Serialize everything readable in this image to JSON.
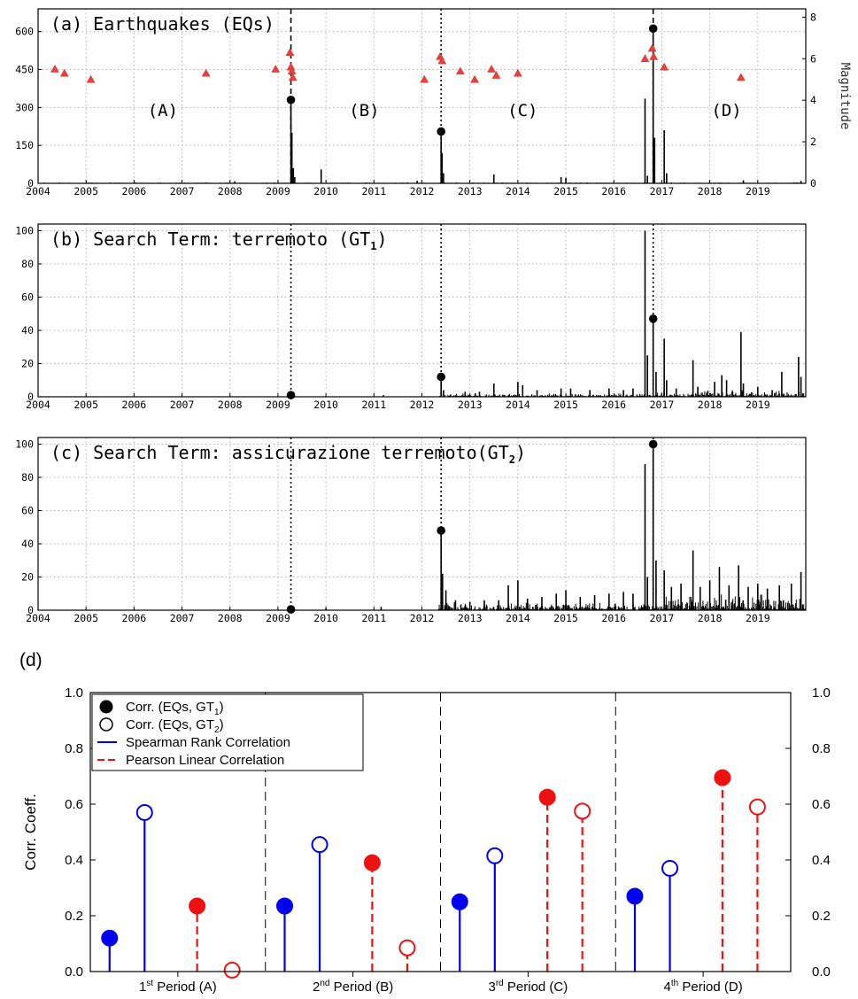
{
  "chart_data": [
    {
      "panel": "a",
      "type": "line",
      "title": "(a) Earthquakes (EQs)",
      "y2label": "Magnitude",
      "x_ticks": [
        "2004",
        "2005",
        "2006",
        "2007",
        "2008",
        "2009",
        "2010",
        "2011",
        "2012",
        "2013",
        "2014",
        "2015",
        "2016",
        "2017",
        "2018",
        "2019"
      ],
      "y_ticks": [
        "0",
        "150",
        "300",
        "450",
        "600"
      ],
      "y2_ticks": [
        "0",
        "2",
        "4",
        "6",
        "8"
      ],
      "ylim": [
        0,
        690
      ],
      "y2lim": [
        0,
        8.4
      ],
      "xlim": [
        2004.0,
        2020.0
      ],
      "grid": true,
      "period_labels": [
        {
          "text": "(A)",
          "x": 2006.6,
          "y": 560
        },
        {
          "text": "(B)",
          "x": 2010.8,
          "y": 560
        },
        {
          "text": "(C)",
          "x": 2014.1,
          "y": 560
        },
        {
          "text": "(D)",
          "x": 2018.35,
          "y": 560
        }
      ],
      "event_lines": [
        2009.27,
        2012.4,
        2016.82
      ],
      "event_line_styles": [
        "dashed",
        "dotted",
        "dashed"
      ],
      "highlighted_points": [
        {
          "x": 2009.27,
          "y": 330
        },
        {
          "x": 2012.4,
          "y": 205
        },
        {
          "x": 2016.82,
          "y": 612
        }
      ],
      "magnitude_points": [
        {
          "x": 2004.35,
          "y": 5.5
        },
        {
          "x": 2004.55,
          "y": 5.3
        },
        {
          "x": 2005.1,
          "y": 5.0
        },
        {
          "x": 2007.5,
          "y": 5.3
        },
        {
          "x": 2008.95,
          "y": 5.5
        },
        {
          "x": 2009.25,
          "y": 6.3
        },
        {
          "x": 2009.27,
          "y": 5.6
        },
        {
          "x": 2009.29,
          "y": 5.4
        },
        {
          "x": 2009.31,
          "y": 5.1
        },
        {
          "x": 2012.05,
          "y": 5.0
        },
        {
          "x": 2012.38,
          "y": 6.1
        },
        {
          "x": 2012.42,
          "y": 5.9
        },
        {
          "x": 2012.8,
          "y": 5.4
        },
        {
          "x": 2013.1,
          "y": 5.0
        },
        {
          "x": 2013.45,
          "y": 5.5
        },
        {
          "x": 2013.55,
          "y": 5.2
        },
        {
          "x": 2014.0,
          "y": 5.3
        },
        {
          "x": 2016.65,
          "y": 6.0
        },
        {
          "x": 2016.8,
          "y": 6.5
        },
        {
          "x": 2016.83,
          "y": 6.1
        },
        {
          "x": 2017.05,
          "y": 5.6
        },
        {
          "x": 2018.65,
          "y": 5.1
        }
      ],
      "spikes": [
        {
          "x": 2008.1,
          "y": 8
        },
        {
          "x": 2009.27,
          "y": 330
        },
        {
          "x": 2009.29,
          "y": 200
        },
        {
          "x": 2009.32,
          "y": 60
        },
        {
          "x": 2009.35,
          "y": 25
        },
        {
          "x": 2009.9,
          "y": 55
        },
        {
          "x": 2011.9,
          "y": 10
        },
        {
          "x": 2012.4,
          "y": 205
        },
        {
          "x": 2012.42,
          "y": 120
        },
        {
          "x": 2012.45,
          "y": 40
        },
        {
          "x": 2013.5,
          "y": 35
        },
        {
          "x": 2014.9,
          "y": 25
        },
        {
          "x": 2015.0,
          "y": 22
        },
        {
          "x": 2016.65,
          "y": 335
        },
        {
          "x": 2016.7,
          "y": 30
        },
        {
          "x": 2016.82,
          "y": 612
        },
        {
          "x": 2016.85,
          "y": 180
        },
        {
          "x": 2017.05,
          "y": 210
        },
        {
          "x": 2017.1,
          "y": 40
        },
        {
          "x": 2018.7,
          "y": 12
        },
        {
          "x": 2019.9,
          "y": 10
        }
      ]
    },
    {
      "panel": "b",
      "type": "line",
      "title_prefix": "(b) Search Term: terremoto (GT",
      "title_sub": "1",
      "title_suffix": ")",
      "x_ticks": [
        "2004",
        "2005",
        "2006",
        "2007",
        "2008",
        "2009",
        "2010",
        "2011",
        "2012",
        "2013",
        "2014",
        "2015",
        "2016",
        "2017",
        "2018",
        "2019"
      ],
      "y_ticks": [
        "0",
        "20",
        "40",
        "60",
        "80",
        "100"
      ],
      "ylim": [
        0,
        104
      ],
      "xlim": [
        2004.0,
        2020.0
      ],
      "grid": true,
      "event_lines": [
        2009.27,
        2012.4,
        2016.82
      ],
      "event_line_styles": [
        "dotted",
        "dotted",
        "dotted"
      ],
      "highlighted_points": [
        {
          "x": 2009.27,
          "y": 1
        },
        {
          "x": 2012.4,
          "y": 12
        },
        {
          "x": 2016.82,
          "y": 47
        }
      ],
      "spikes": [
        {
          "x": 2009.27,
          "y": 2
        },
        {
          "x": 2011.2,
          "y": 1
        },
        {
          "x": 2012.4,
          "y": 12
        },
        {
          "x": 2012.45,
          "y": 4
        },
        {
          "x": 2012.9,
          "y": 3
        },
        {
          "x": 2013.2,
          "y": 3
        },
        {
          "x": 2013.5,
          "y": 8
        },
        {
          "x": 2014.0,
          "y": 9
        },
        {
          "x": 2014.1,
          "y": 7
        },
        {
          "x": 2014.4,
          "y": 4
        },
        {
          "x": 2014.9,
          "y": 5
        },
        {
          "x": 2015.1,
          "y": 5
        },
        {
          "x": 2015.5,
          "y": 4
        },
        {
          "x": 2015.9,
          "y": 5
        },
        {
          "x": 2016.2,
          "y": 4
        },
        {
          "x": 2016.4,
          "y": 5
        },
        {
          "x": 2016.65,
          "y": 100
        },
        {
          "x": 2016.7,
          "y": 25
        },
        {
          "x": 2016.82,
          "y": 47
        },
        {
          "x": 2016.88,
          "y": 15
        },
        {
          "x": 2017.05,
          "y": 35
        },
        {
          "x": 2017.1,
          "y": 10
        },
        {
          "x": 2017.3,
          "y": 5
        },
        {
          "x": 2017.65,
          "y": 22
        },
        {
          "x": 2017.75,
          "y": 6
        },
        {
          "x": 2018.1,
          "y": 9
        },
        {
          "x": 2018.25,
          "y": 13
        },
        {
          "x": 2018.35,
          "y": 10
        },
        {
          "x": 2018.65,
          "y": 39
        },
        {
          "x": 2018.7,
          "y": 8
        },
        {
          "x": 2019.0,
          "y": 6
        },
        {
          "x": 2019.3,
          "y": 4
        },
        {
          "x": 2019.5,
          "y": 15
        },
        {
          "x": 2019.85,
          "y": 24
        },
        {
          "x": 2019.9,
          "y": 12
        }
      ]
    },
    {
      "panel": "c",
      "type": "line",
      "title_prefix": "(c) Search Term: assicurazione terremoto(GT",
      "title_sub": "2",
      "title_suffix": ")",
      "x_ticks": [
        "2004",
        "2005",
        "2006",
        "2007",
        "2008",
        "2009",
        "2010",
        "2011",
        "2012",
        "2013",
        "2014",
        "2015",
        "2016",
        "2017",
        "2018",
        "2019"
      ],
      "y_ticks": [
        "0",
        "20",
        "40",
        "60",
        "80",
        "100"
      ],
      "ylim": [
        0,
        104
      ],
      "xlim": [
        2004.0,
        2020.0
      ],
      "grid": true,
      "event_lines": [
        2009.27,
        2012.4,
        2016.82
      ],
      "event_line_styles": [
        "dotted",
        "dotted",
        "dotted"
      ],
      "highlighted_points": [
        {
          "x": 2009.27,
          "y": 0.5
        },
        {
          "x": 2012.4,
          "y": 48
        },
        {
          "x": 2016.82,
          "y": 100
        }
      ],
      "spikes": [
        {
          "x": 2009.27,
          "y": 1
        },
        {
          "x": 2010.0,
          "y": 1
        },
        {
          "x": 2011.15,
          "y": 2
        },
        {
          "x": 2012.4,
          "y": 48
        },
        {
          "x": 2012.43,
          "y": 22
        },
        {
          "x": 2012.5,
          "y": 12
        },
        {
          "x": 2012.7,
          "y": 6
        },
        {
          "x": 2013.0,
          "y": 5
        },
        {
          "x": 2013.3,
          "y": 6
        },
        {
          "x": 2013.6,
          "y": 6
        },
        {
          "x": 2013.8,
          "y": 15
        },
        {
          "x": 2014.0,
          "y": 18
        },
        {
          "x": 2014.2,
          "y": 7
        },
        {
          "x": 2014.5,
          "y": 8
        },
        {
          "x": 2014.8,
          "y": 10
        },
        {
          "x": 2015.0,
          "y": 12
        },
        {
          "x": 2015.3,
          "y": 8
        },
        {
          "x": 2015.6,
          "y": 9
        },
        {
          "x": 2015.9,
          "y": 10
        },
        {
          "x": 2016.2,
          "y": 11
        },
        {
          "x": 2016.4,
          "y": 10
        },
        {
          "x": 2016.65,
          "y": 88
        },
        {
          "x": 2016.7,
          "y": 20
        },
        {
          "x": 2016.82,
          "y": 100
        },
        {
          "x": 2016.88,
          "y": 30
        },
        {
          "x": 2017.05,
          "y": 24
        },
        {
          "x": 2017.2,
          "y": 14
        },
        {
          "x": 2017.4,
          "y": 16
        },
        {
          "x": 2017.65,
          "y": 36
        },
        {
          "x": 2017.8,
          "y": 14
        },
        {
          "x": 2018.0,
          "y": 18
        },
        {
          "x": 2018.2,
          "y": 26
        },
        {
          "x": 2018.4,
          "y": 15
        },
        {
          "x": 2018.6,
          "y": 27
        },
        {
          "x": 2018.8,
          "y": 14
        },
        {
          "x": 2019.0,
          "y": 16
        },
        {
          "x": 2019.2,
          "y": 13
        },
        {
          "x": 2019.45,
          "y": 15
        },
        {
          "x": 2019.7,
          "y": 16
        },
        {
          "x": 2019.9,
          "y": 23
        }
      ]
    },
    {
      "panel": "d",
      "type": "scatter",
      "panel_label": "(d)",
      "ylabel": "Corr. Coeff.",
      "ylim": [
        0,
        1.0
      ],
      "y_ticks": [
        "0.0",
        "0.2",
        "0.4",
        "0.6",
        "0.8",
        "1.0"
      ],
      "categories": [
        {
          "sup": "st",
          "num": "1",
          "rest": " Period (A)"
        },
        {
          "sup": "nd",
          "num": "2",
          "rest": " Period (B)"
        },
        {
          "sup": "rd",
          "num": "3",
          "rest": " Period (C)"
        },
        {
          "sup": "th",
          "num": "4",
          "rest": " Period (D)"
        }
      ],
      "colors": {
        "spearman": "#0000ee",
        "pearson": "#ee1111"
      },
      "legend": [
        {
          "marker": "filled",
          "label_prefix": "Corr. (EQs, GT",
          "label_sub": "1",
          "label_suffix": ")"
        },
        {
          "marker": "open",
          "label_prefix": "Corr. (EQs, GT",
          "label_sub": "2",
          "label_suffix": ")"
        },
        {
          "marker": "solid-line",
          "label": "Spearman Rank Correlation"
        },
        {
          "marker": "dashed-line",
          "label": "Pearson Linear Correlation"
        }
      ],
      "series": [
        {
          "method": "spearman",
          "term": "GT1",
          "values": [
            0.12,
            0.235,
            0.25,
            0.27
          ]
        },
        {
          "method": "spearman",
          "term": "GT2",
          "values": [
            0.57,
            0.455,
            0.415,
            0.37
          ]
        },
        {
          "method": "pearson",
          "term": "GT1",
          "values": [
            0.235,
            0.39,
            0.625,
            0.695
          ]
        },
        {
          "method": "pearson",
          "term": "GT2",
          "values": [
            0.005,
            0.085,
            0.575,
            0.59
          ]
        }
      ]
    }
  ]
}
